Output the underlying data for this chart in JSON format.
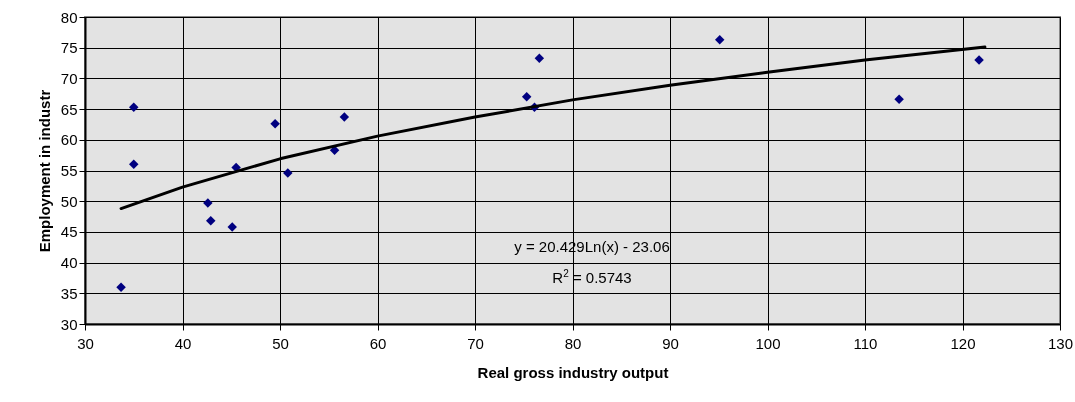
{
  "chart_data": {
    "type": "scatter",
    "xlabel": "Real gross industry output",
    "ylabel": "Employment in industr",
    "xlim": [
      30,
      130
    ],
    "xticks": [
      30,
      40,
      50,
      60,
      70,
      80,
      90,
      100,
      110,
      120,
      130
    ],
    "ylim": [
      30,
      80
    ],
    "yticks": [
      30,
      35,
      40,
      45,
      50,
      55,
      60,
      65,
      70,
      75,
      80
    ],
    "grid": true,
    "marker": "diamond",
    "annotations": [
      "y = 20.429Ln(x) - 23.06",
      "R$^{2}$ = 0.5743"
    ],
    "series": [
      {
        "color": "#000080",
        "x": [
          33.7,
          35.0,
          35.0,
          42.6,
          42.9,
          45.1,
          45.5,
          49.5,
          50.8,
          55.6,
          56.6,
          75.3,
          76.1,
          76.6,
          95.1,
          113.5,
          121.7
        ],
        "values": [
          36.0,
          65.3,
          56.0,
          49.7,
          46.8,
          45.8,
          55.5,
          62.6,
          54.6,
          58.3,
          63.7,
          67.0,
          65.3,
          73.3,
          76.3,
          66.6,
          73.0
        ]
      },
      {
        "type": "line",
        "color": "#000000",
        "line_style": "solid",
        "marker": "none",
        "x": [
          33.7,
          40,
          50,
          60,
          70,
          80,
          90,
          100,
          110,
          122.3
        ],
        "values": [
          48.8,
          52.3,
          56.9,
          60.6,
          63.7,
          66.5,
          68.9,
          71.0,
          73.0,
          75.1
        ]
      }
    ]
  }
}
